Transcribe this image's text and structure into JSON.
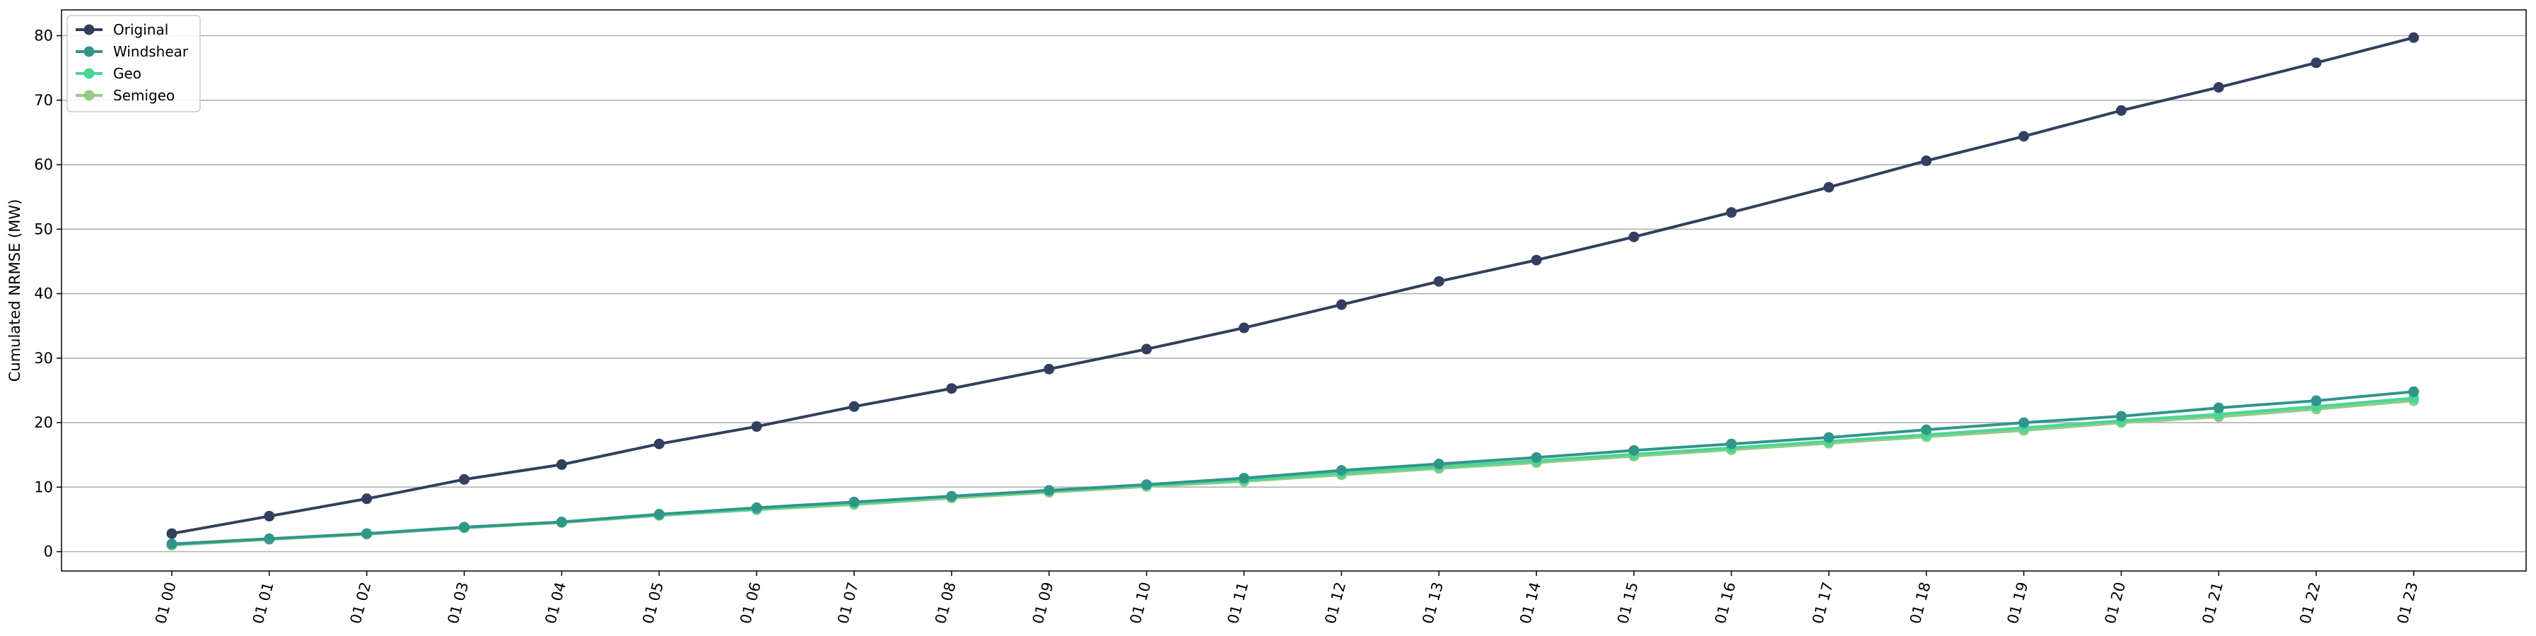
{
  "chart_data": {
    "type": "line",
    "title": "",
    "xlabel": "",
    "ylabel": "Cumulated NRMSE (MW)",
    "ylim": [
      -3,
      84
    ],
    "yticks": [
      0,
      10,
      20,
      30,
      40,
      50,
      60,
      70,
      80
    ],
    "grid": "horizontal",
    "legend_position": "top-left",
    "categories": [
      "01 00",
      "01 01",
      "01 02",
      "01 03",
      "01 04",
      "01 05",
      "01 06",
      "01 07",
      "01 08",
      "01 09",
      "01 10",
      "01 11",
      "01 12",
      "01 13",
      "01 14",
      "01 15",
      "01 16",
      "01 17",
      "01 18",
      "01 19",
      "01 20",
      "01 21",
      "01 22",
      "01 23"
    ],
    "series": [
      {
        "name": "Original",
        "color": "#323f5e",
        "values": [
          2.8,
          5.5,
          8.2,
          11.2,
          13.5,
          16.7,
          19.4,
          22.5,
          25.3,
          28.3,
          31.4,
          34.7,
          38.3,
          41.9,
          45.2,
          48.8,
          52.6,
          56.5,
          60.6,
          64.4,
          68.4,
          72.0,
          75.8,
          79.7
        ]
      },
      {
        "name": "Windshear",
        "color": "#31968a",
        "values": [
          1.2,
          2.0,
          2.8,
          3.8,
          4.6,
          5.8,
          6.8,
          7.7,
          8.6,
          9.5,
          10.4,
          11.4,
          12.6,
          13.6,
          14.6,
          15.7,
          16.7,
          17.7,
          18.9,
          20.0,
          21.0,
          22.3,
          23.4,
          24.8
        ]
      },
      {
        "name": "Geo",
        "color": "#4bd697",
        "values": [
          1.1,
          2.0,
          2.8,
          3.7,
          4.6,
          5.7,
          6.6,
          7.5,
          8.5,
          9.4,
          10.3,
          11.1,
          12.2,
          13.2,
          14.1,
          15.1,
          16.1,
          17.1,
          18.1,
          19.2,
          20.3,
          21.3,
          22.5,
          23.8
        ]
      },
      {
        "name": "Semigeo",
        "color": "#93cb87",
        "values": [
          1.0,
          1.9,
          2.7,
          3.7,
          4.5,
          5.6,
          6.5,
          7.3,
          8.3,
          9.2,
          10.1,
          10.9,
          11.9,
          12.9,
          13.8,
          14.8,
          15.8,
          16.8,
          17.8,
          18.8,
          20.0,
          20.9,
          22.1,
          23.4
        ]
      }
    ]
  }
}
